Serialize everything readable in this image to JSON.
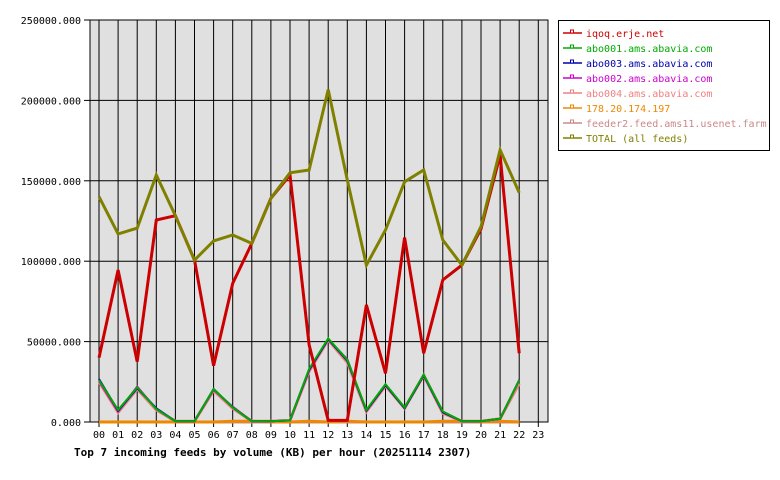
{
  "chart_data": {
    "type": "line",
    "title": "Top 7 incoming feeds by volume (KB) per hour (20251114 2307)",
    "xlabel": "",
    "ylabel": "",
    "ylim": [
      0,
      250000
    ],
    "yticks": [
      "0.000",
      "50000.000",
      "100000.000",
      "150000.000",
      "200000.000",
      "250000.000"
    ],
    "ytick_values": [
      0,
      50000,
      100000,
      150000,
      200000,
      250000
    ],
    "categories": [
      "00",
      "01",
      "02",
      "03",
      "04",
      "05",
      "06",
      "07",
      "08",
      "09",
      "10",
      "11",
      "12",
      "13",
      "14",
      "15",
      "16",
      "17",
      "18",
      "19",
      "20",
      "21",
      "22",
      "23"
    ],
    "grid": true,
    "legend_position": "right",
    "series": [
      {
        "name": "iqoq.erje.net",
        "color": "#cc0000",
        "values": [
          40000,
          94500,
          37500,
          125600,
          128300,
          100700,
          35000,
          86200,
          111100,
          139100,
          153600,
          48000,
          1000,
          1000,
          72800,
          30300,
          114700,
          42700,
          88300,
          97600,
          120000,
          166000,
          42700,
          null
        ]
      },
      {
        "name": "abo001.ams.abavia.com",
        "color": "#00aa00",
        "values": [
          26000,
          7500,
          21500,
          8000,
          500,
          500,
          20500,
          9000,
          500,
          500,
          1000,
          33000,
          52000,
          38600,
          7500,
          23600,
          9000,
          29500,
          6500,
          500,
          500,
          2000,
          26000,
          null
        ]
      },
      {
        "name": "abo003.ams.abavia.com",
        "color": "#0000aa",
        "values": [
          26700,
          7000,
          21000,
          8500,
          500,
          500,
          20500,
          9000,
          500,
          500,
          1000,
          32500,
          51500,
          38000,
          7000,
          23000,
          8500,
          29000,
          6000,
          500,
          500,
          2000,
          26000,
          null
        ]
      },
      {
        "name": "abo002.ams.abavia.com",
        "color": "#cc00cc",
        "values": [
          25500,
          6500,
          22000,
          8000,
          500,
          500,
          20000,
          9500,
          500,
          500,
          1000,
          32000,
          51500,
          39000,
          7000,
          23000,
          9000,
          29500,
          6500,
          500,
          500,
          2000,
          26100,
          null
        ]
      },
      {
        "name": "abo004.ams.abavia.com",
        "color": "#f08080",
        "values": [
          25000,
          6000,
          20500,
          7500,
          500,
          500,
          19500,
          8500,
          500,
          500,
          1000,
          31500,
          51000,
          37000,
          6500,
          22500,
          8500,
          29000,
          5500,
          500,
          500,
          2000,
          24000,
          null
        ]
      },
      {
        "name": "178.20.174.197",
        "color": "#ee8800",
        "values": [
          0,
          0,
          0,
          0,
          0,
          0,
          0,
          500,
          500,
          0,
          0,
          500,
          0,
          500,
          0,
          0,
          0,
          0,
          500,
          500,
          0,
          500,
          0,
          null
        ]
      },
      {
        "name": "feeder2.feed.ams11.usenet.farm",
        "color": "#cc8888",
        "values": [
          0,
          0,
          0,
          0,
          0,
          0,
          0,
          0,
          0,
          0,
          0,
          0,
          0,
          0,
          0,
          0,
          0,
          0,
          0,
          0,
          0,
          0,
          0,
          null
        ]
      },
      {
        "name": "TOTAL (all feeds)",
        "color": "#808000",
        "values": [
          140100,
          117000,
          120600,
          153600,
          128300,
          100700,
          112600,
          116300,
          111100,
          139100,
          155000,
          156700,
          206700,
          150500,
          97600,
          119400,
          149400,
          156700,
          113200,
          97600,
          121500,
          169200,
          142600,
          null
        ]
      }
    ]
  },
  "colors": {
    "plot_background": "#e0e0e0",
    "grid": "#000000",
    "page_background": "#ffffff"
  }
}
